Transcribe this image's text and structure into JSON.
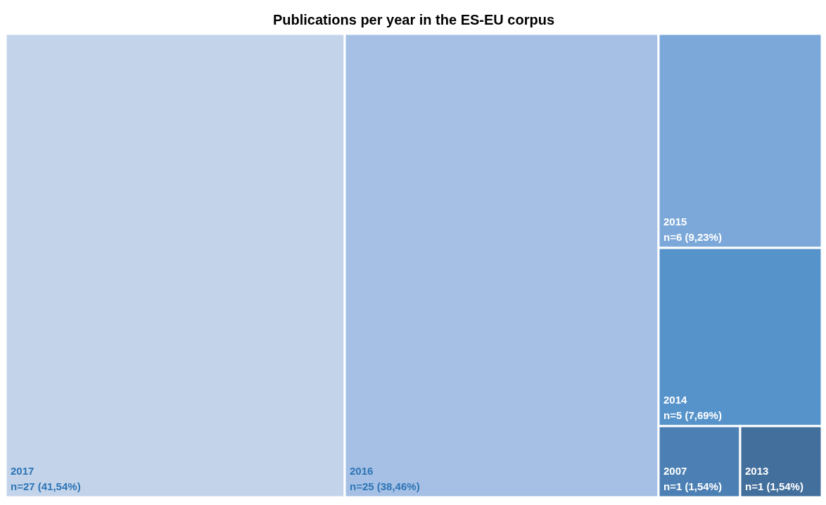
{
  "chart_data": {
    "type": "other",
    "title": "Publications per year in the ES-EU corpus",
    "categories": [
      "2017",
      "2016",
      "2015",
      "2014",
      "2007",
      "2013"
    ],
    "values": [
      27,
      25,
      6,
      5,
      1,
      1
    ],
    "value_labels": [
      "n=27 (41,54%)",
      "n=25 (38,46%)",
      "n=6 (9,23%)",
      "n=5 (7,69%)",
      "n=1 (1,54%)",
      "n=1 (1,54%)"
    ],
    "colors": [
      "#c3d4ea",
      "#a5c0e4",
      "#7ba8d9",
      "#5593ca",
      "#4c80b4",
      "#436f9c"
    ]
  }
}
